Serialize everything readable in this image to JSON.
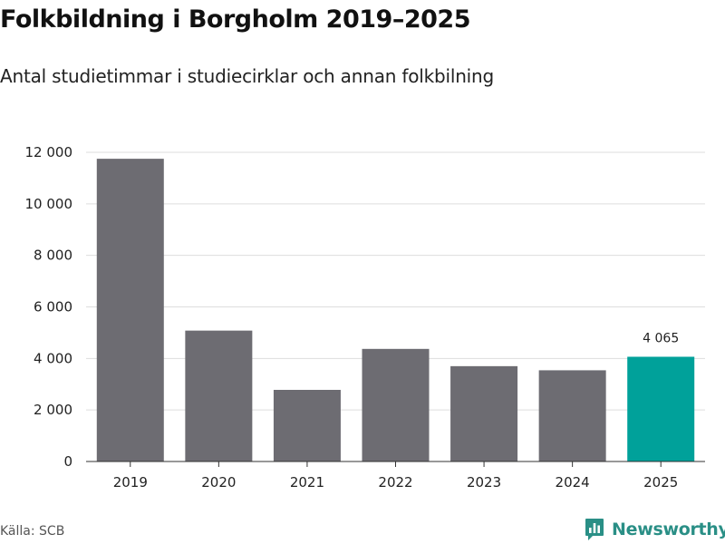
{
  "header": {
    "title": "Folkbildning i Borgholm 2019–2025",
    "subtitle": "Antal studietimmar i studiecirklar och annan folkbilning"
  },
  "footer": {
    "source": "Källa: SCB",
    "brand": "Newsworthy",
    "brand_icon": "newsworthy-logo-icon"
  },
  "colors": {
    "bar": "#6d6c72",
    "highlight": "#00a19a",
    "grid": "#dddddd",
    "axis": "#333333",
    "brand": "#2a8f86"
  },
  "chart_data": {
    "type": "bar",
    "categories": [
      "2019",
      "2020",
      "2021",
      "2022",
      "2023",
      "2024",
      "2025"
    ],
    "values": [
      11750,
      5080,
      2780,
      4370,
      3700,
      3540,
      4065
    ],
    "highlight_index": 6,
    "data_labels": [
      {
        "index": 6,
        "text": "4 065"
      }
    ],
    "title": "Folkbildning i Borgholm 2019–2025",
    "subtitle": "Antal studietimmar i studiecirklar och annan folkbilning",
    "xlabel": "",
    "ylabel": "",
    "ylim": [
      0,
      12000
    ],
    "yticks": [
      0,
      2000,
      4000,
      6000,
      8000,
      10000,
      12000
    ],
    "ytick_labels": [
      "0",
      "2 000",
      "4 000",
      "6 000",
      "8 000",
      "10 000",
      "12 000"
    ],
    "grid": true,
    "legend": "none"
  }
}
